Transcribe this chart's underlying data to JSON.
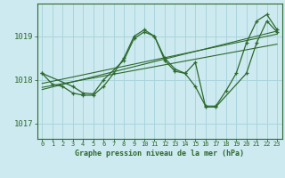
{
  "title": "Graphe pression niveau de la mer (hPa)",
  "bg_color": "#cdeaf0",
  "grid_color_major": "#aad4dc",
  "grid_color_minor": "#c0e0e8",
  "line_color": "#2d6a2d",
  "xlim": [
    -0.5,
    23.5
  ],
  "ylim": [
    1016.65,
    1019.75
  ],
  "yticks": [
    1017,
    1018,
    1019
  ],
  "xticks": [
    0,
    1,
    2,
    3,
    4,
    5,
    6,
    7,
    8,
    9,
    10,
    11,
    12,
    13,
    14,
    15,
    16,
    17,
    18,
    19,
    20,
    21,
    22,
    23
  ],
  "series": [
    {
      "x": [
        0,
        1,
        2,
        3,
        4,
        5,
        6,
        7,
        8,
        9,
        10,
        11,
        12,
        13,
        14,
        15,
        16,
        17,
        18,
        19,
        20,
        21,
        22,
        23
      ],
      "y": [
        1018.15,
        1017.9,
        1017.85,
        1017.7,
        1017.65,
        1017.65,
        1017.85,
        1018.15,
        1018.5,
        1019.0,
        1019.15,
        1019.0,
        1018.5,
        1018.25,
        1018.15,
        1017.85,
        1017.4,
        1017.4,
        1017.75,
        1018.15,
        1018.85,
        1019.35,
        1019.5,
        1019.15
      ]
    },
    {
      "x": [
        0,
        3,
        4,
        5,
        6,
        8,
        9,
        10,
        11,
        12,
        13,
        14,
        15,
        16,
        17,
        20,
        21,
        22,
        23
      ],
      "y": [
        1018.15,
        1017.85,
        1017.7,
        1017.68,
        1018.0,
        1018.45,
        1018.95,
        1019.1,
        1019.0,
        1018.45,
        1018.2,
        1018.15,
        1018.4,
        1017.38,
        1017.38,
        1018.15,
        1018.85,
        1019.35,
        1019.1
      ]
    },
    {
      "x": [
        0,
        23
      ],
      "y": [
        1017.92,
        1019.05
      ]
    },
    {
      "x": [
        0,
        23
      ],
      "y": [
        1017.83,
        1018.82
      ]
    },
    {
      "x": [
        0,
        23
      ],
      "y": [
        1017.78,
        1019.12
      ]
    }
  ]
}
